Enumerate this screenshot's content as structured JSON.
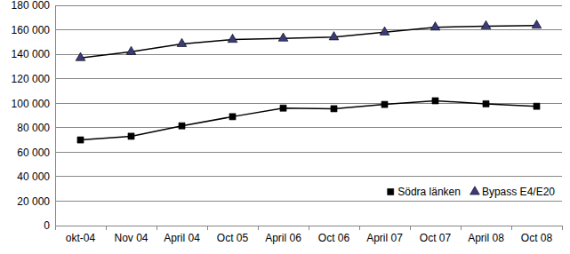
{
  "chart_data": {
    "type": "line",
    "categories": [
      "okt-04",
      "Nov 04",
      "April 04",
      "Oct 05",
      "April 06",
      "Oct 06",
      "April 07",
      "Oct 07",
      "April 08",
      "Oct 08"
    ],
    "series": [
      {
        "name": "Södra länken",
        "color": "#000000",
        "marker": "square",
        "values": [
          70000,
          73000,
          81500,
          89000,
          96000,
          95500,
          99000,
          102000,
          99500,
          97500
        ]
      },
      {
        "name": "Bypass E4/E20",
        "color": "#000000",
        "marker": "triangle",
        "values": [
          137000,
          142000,
          148500,
          152000,
          153000,
          154000,
          158000,
          162000,
          163000,
          163500
        ]
      }
    ],
    "ylim": [
      0,
      180000
    ],
    "yticks": [
      {
        "value": 0,
        "label": "0"
      },
      {
        "value": 20000,
        "label": "20 000"
      },
      {
        "value": 40000,
        "label": "40 000"
      },
      {
        "value": 60000,
        "label": "60 000"
      },
      {
        "value": 80000,
        "label": "80 000"
      },
      {
        "value": 100000,
        "label": "100 000"
      },
      {
        "value": 120000,
        "label": "120 000"
      },
      {
        "value": 140000,
        "label": "140 000"
      },
      {
        "value": 160000,
        "label": "160 000"
      },
      {
        "value": 180000,
        "label": "180 000"
      }
    ],
    "grid": true,
    "legend": "bottom-right"
  }
}
